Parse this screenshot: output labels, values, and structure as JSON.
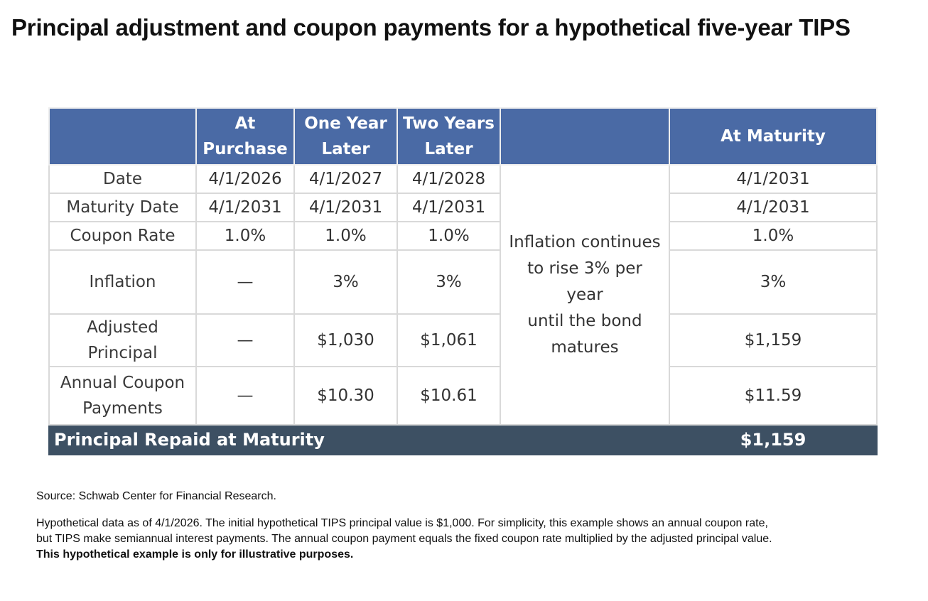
{
  "title": "Principal adjustment and coupon payments for a hypothetical five-year TIPS",
  "table": {
    "headers": {
      "label": "",
      "at_purchase": [
        "At",
        "Purchase"
      ],
      "one_year": [
        "One Year",
        "Later"
      ],
      "two_years": [
        "Two Years",
        "Later"
      ],
      "gap": "",
      "at_maturity": "At Maturity"
    },
    "rows": [
      {
        "label": [
          "Date"
        ],
        "values": [
          "4/1/2026",
          "4/1/2027",
          "4/1/2028"
        ],
        "maturity": "4/1/2031"
      },
      {
        "label": [
          "Maturity Date"
        ],
        "values": [
          "4/1/2031",
          "4/1/2031",
          "4/1/2031"
        ],
        "maturity": "4/1/2031"
      },
      {
        "label": [
          "Coupon Rate"
        ],
        "values": [
          "1.0%",
          "1.0%",
          "1.0%"
        ],
        "maturity": "1.0%"
      },
      {
        "label": [
          "Inflation"
        ],
        "values": [
          "—",
          "3%",
          "3%"
        ],
        "maturity": "3%"
      },
      {
        "label": [
          "Adjusted",
          "Principal"
        ],
        "values": [
          "—",
          "$1,030",
          "$1,061"
        ],
        "maturity": "$1,159"
      },
      {
        "label": [
          "Annual Coupon",
          "Payments"
        ],
        "values": [
          "—",
          "$10.30",
          "$10.61"
        ],
        "maturity": "$11.59"
      }
    ],
    "inflation_note": [
      "Inflation continues",
      "to rise 3% per year",
      "until the bond",
      "matures"
    ],
    "footer": {
      "label": "Principal Repaid at Maturity",
      "value": "$1,159"
    }
  },
  "footnotes": {
    "source": "Source: Schwab Center for Financial Research.",
    "disclaimer_lines": [
      "Hypothetical data as of 4/1/2026. The initial hypothetical TIPS principal value is $1,000. For simplicity, this example shows an annual coupon rate,",
      "but TIPS make semiannual interest payments. The annual coupon payment equals the fixed coupon rate multiplied by the adjusted principal value."
    ],
    "disclaimer_bold": "This hypothetical example is only for illustrative purposes."
  }
}
